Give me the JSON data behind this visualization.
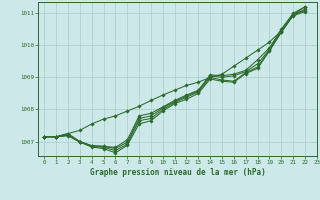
{
  "title": "Graphe pression niveau de la mer (hPa)",
  "bg_color": "#cce8e8",
  "grid_color": "#aacccc",
  "line_color": "#2d6a2d",
  "xlim": [
    -0.5,
    23
  ],
  "ylim": [
    1006.55,
    1011.35
  ],
  "yticks": [
    1007,
    1008,
    1009,
    1010,
    1011
  ],
  "xticks": [
    0,
    1,
    2,
    3,
    4,
    5,
    6,
    7,
    8,
    9,
    10,
    11,
    12,
    13,
    14,
    15,
    16,
    17,
    18,
    19,
    20,
    21,
    22,
    23
  ],
  "x": [
    0,
    1,
    2,
    3,
    4,
    5,
    6,
    7,
    8,
    9,
    10,
    11,
    12,
    13,
    14,
    15,
    16,
    17,
    18,
    19,
    20,
    21,
    22
  ],
  "series": [
    [
      1007.15,
      1007.15,
      1007.25,
      1007.35,
      1007.55,
      1007.7,
      1007.8,
      1007.95,
      1008.1,
      1008.28,
      1008.45,
      1008.6,
      1008.75,
      1008.85,
      1009.0,
      1009.1,
      1009.35,
      1009.6,
      1009.85,
      1010.1,
      1010.45,
      1010.95,
      1011.2
    ],
    [
      1007.15,
      1007.15,
      1007.25,
      1007.0,
      1006.87,
      1006.85,
      1006.82,
      1007.05,
      1007.8,
      1007.88,
      1008.08,
      1008.28,
      1008.45,
      1008.6,
      1009.08,
      1009.05,
      1009.1,
      1009.22,
      1009.55,
      1009.92,
      1010.5,
      1011.0,
      1011.2
    ],
    [
      1007.15,
      1007.15,
      1007.2,
      1007.0,
      1006.87,
      1006.85,
      1006.78,
      1006.98,
      1007.72,
      1007.8,
      1008.05,
      1008.25,
      1008.42,
      1008.58,
      1009.05,
      1009.0,
      1009.05,
      1009.18,
      1009.42,
      1009.87,
      1010.45,
      1010.95,
      1011.12
    ],
    [
      1007.15,
      1007.15,
      1007.2,
      1007.0,
      1006.85,
      1006.82,
      1006.72,
      1006.92,
      1007.65,
      1007.72,
      1008.0,
      1008.22,
      1008.38,
      1008.55,
      1009.0,
      1008.92,
      1008.88,
      1009.15,
      1009.32,
      1009.85,
      1010.42,
      1010.95,
      1011.08
    ],
    [
      1007.15,
      1007.15,
      1007.18,
      1006.98,
      1006.83,
      1006.78,
      1006.65,
      1006.88,
      1007.55,
      1007.65,
      1007.95,
      1008.18,
      1008.32,
      1008.5,
      1008.95,
      1008.88,
      1008.85,
      1009.12,
      1009.28,
      1009.82,
      1010.4,
      1010.92,
      1011.05
    ]
  ],
  "figsize": [
    3.2,
    2.0
  ],
  "dpi": 100
}
